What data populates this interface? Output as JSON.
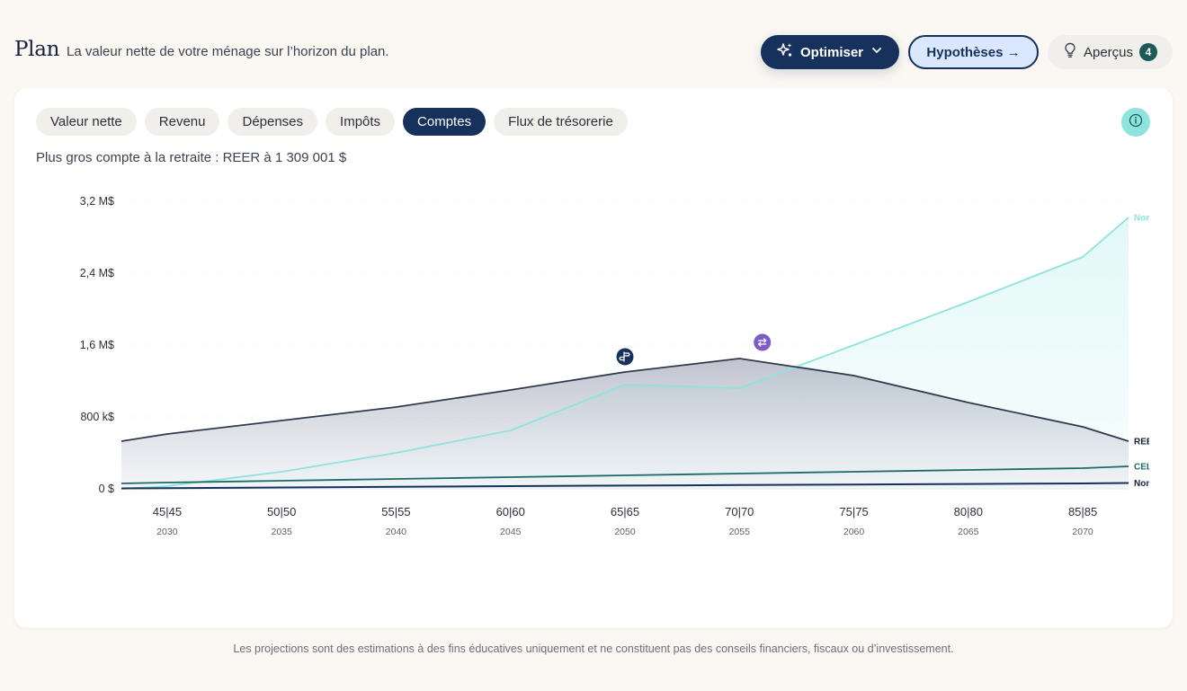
{
  "header": {
    "title": "Plan",
    "subtitle": "La valeur nette de votre ménage sur l’horizon du plan.",
    "optimize_label": "Optimiser",
    "hypotheses_label": "Hypothèses →",
    "insights_label": "Aperçus",
    "insights_count": "4"
  },
  "tabs": [
    {
      "label": "Valeur nette",
      "active": false
    },
    {
      "label": "Revenu",
      "active": false
    },
    {
      "label": "Dépenses",
      "active": false
    },
    {
      "label": "Impôts",
      "active": false
    },
    {
      "label": "Comptes",
      "active": true
    },
    {
      "label": "Flux de trésorerie",
      "active": false
    }
  ],
  "summary": "Plus gros compte à la retraite : REER à 1 309 001 $",
  "footer": "Les projections sont des estimations à des fins éducatives uniquement et ne constituent pas des conseils financiers, fiscaux ou d’investissement.",
  "icons": {
    "optimize": "sparkle-icon",
    "dropdown": "chevron-down-icon",
    "insights": "lightbulb-icon",
    "info": "info-icon",
    "marker_retirement": "signpost-icon",
    "marker_transfer": "swap-icon"
  },
  "colors": {
    "navy": "#16325c",
    "reer": "#2f3a4e",
    "teal_light": "#8ee3dd",
    "celi": "#1d6b68",
    "non_reg": "#16325c",
    "marker_purple": "#7c5cc6"
  },
  "chart_data": {
    "type": "area",
    "x_years": [
      2028,
      2030,
      2035,
      2040,
      2045,
      2050,
      2055,
      2060,
      2065,
      2070,
      2072
    ],
    "tick_ages": [
      "45|45",
      "50|50",
      "55|55",
      "60|60",
      "65|65",
      "70|70",
      "75|75",
      "80|80",
      "85|85"
    ],
    "tick_years": [
      "2030",
      "2035",
      "2040",
      "2045",
      "2050",
      "2055",
      "2060",
      "2065",
      "2070"
    ],
    "y_ticks": [
      "0 $",
      "800 k$",
      "1,6 M$",
      "2,4 M$",
      "3,2 M$"
    ],
    "ylim": [
      0,
      3200000
    ],
    "legend_position": "right-end labels",
    "series": [
      {
        "name": "Non",
        "values": [
          0,
          30000,
          190000,
          400000,
          650000,
          1160000,
          1120000,
          1600000,
          2080000,
          2580000,
          3020000
        ]
      },
      {
        "name": "REER",
        "values": [
          530000,
          610000,
          760000,
          910000,
          1100000,
          1300000,
          1450000,
          1260000,
          960000,
          690000,
          530000
        ]
      },
      {
        "name": "CEL",
        "values": [
          60000,
          70000,
          90000,
          110000,
          130000,
          150000,
          170000,
          190000,
          210000,
          230000,
          250000
        ]
      },
      {
        "name": "Non",
        "values": [
          5000,
          8000,
          15000,
          22000,
          30000,
          36000,
          42000,
          48000,
          54000,
          60000,
          65000
        ]
      }
    ],
    "markers": [
      {
        "icon": "signpost-icon",
        "year": 2050,
        "value": 1470000
      },
      {
        "icon": "swap-icon",
        "year": 2056,
        "value": 1630000
      }
    ]
  }
}
